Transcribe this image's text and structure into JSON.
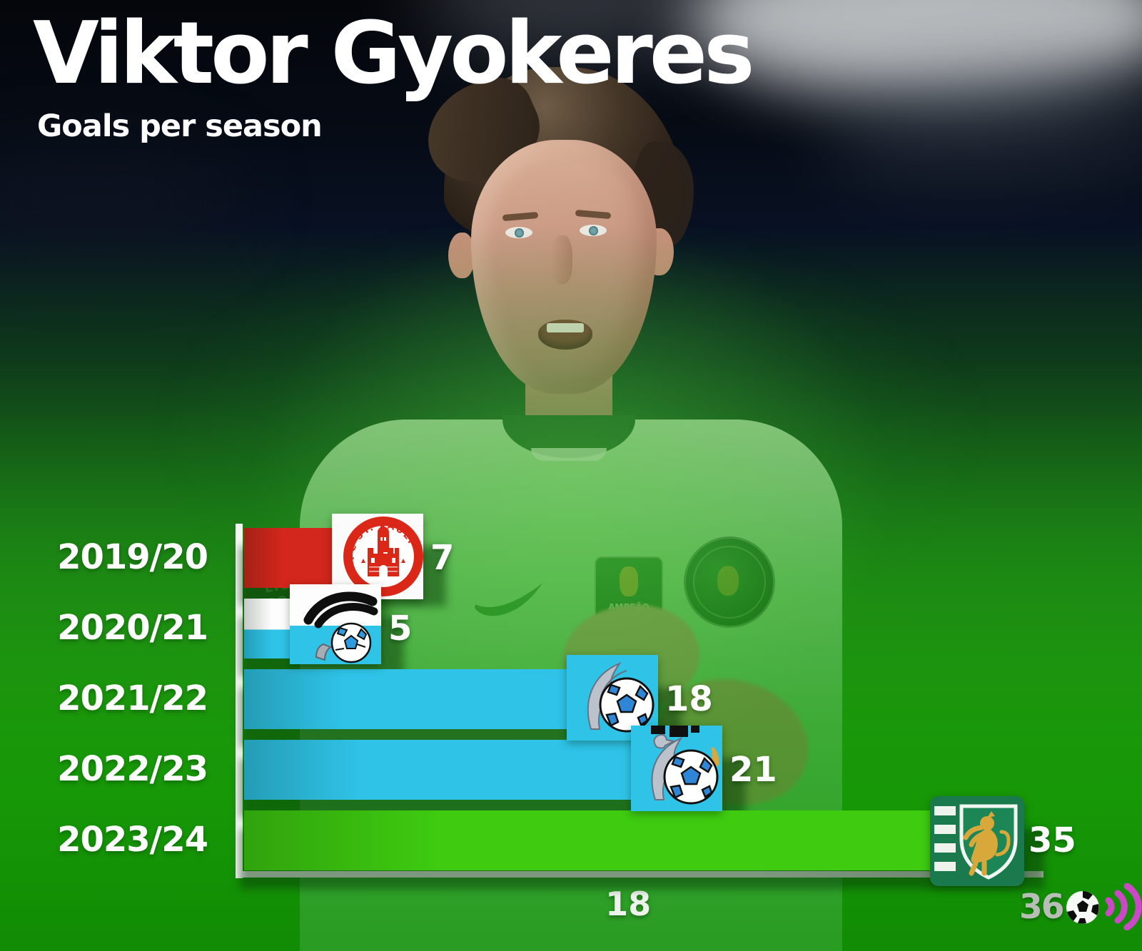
{
  "header": {
    "title": "Viktor Gyokeres",
    "subtitle": "Goals per season"
  },
  "chart_data": {
    "type": "bar",
    "orientation": "horizontal",
    "title": "Viktor Gyokeres",
    "subtitle": "Goals per season",
    "categories": [
      "2019/20",
      "2020/21",
      "2021/22",
      "2022/23",
      "2023/24"
    ],
    "values": [
      7,
      5,
      18,
      21,
      35
    ],
    "value_labels": [
      "7",
      "5",
      "18",
      "21",
      "35"
    ],
    "clubs": [
      "FC St. Pauli",
      "Swansea City / Coventry City",
      "Coventry City",
      "Coventry City",
      "Sporting CP"
    ],
    "logo_icons": [
      "st-pauli-crest-icon",
      "swansea-coventry-crest-icon",
      "coventry-crest-icon",
      "coventry-alt-crest-icon",
      "sporting-cp-crest-icon"
    ],
    "bar_styles": [
      {
        "type": "solid",
        "color": "#d3261c"
      },
      {
        "type": "split",
        "top": "#fdfdfd",
        "bottom": "#2fc3e8"
      },
      {
        "type": "solid",
        "color": "#2fc3e8"
      },
      {
        "type": "solid",
        "color": "#2fc3e8"
      },
      {
        "type": "solid",
        "color": "#3ecb10"
      }
    ],
    "xlim": [
      0,
      36
    ],
    "x_ticks": [
      {
        "value": 18,
        "label": "18"
      }
    ],
    "grid": false,
    "legend": "none",
    "crest_texts": {
      "st_pauli": "FC ST. PAULI"
    }
  },
  "photo": {
    "sleeve_text": "LIGA PORTUGAL",
    "patch_text": "AMPEÃO"
  },
  "branding": {
    "number": "36",
    "ball_icon": "football-icon",
    "waves_icon": "signal-waves-icon",
    "wave_color": "#cb49c6",
    "number_color": "#b6beb6"
  },
  "colors": {
    "axis": "#f4f6f3",
    "text": "#ffffff",
    "background_top": "#04060b",
    "background_bottom": "#0f8a03"
  }
}
